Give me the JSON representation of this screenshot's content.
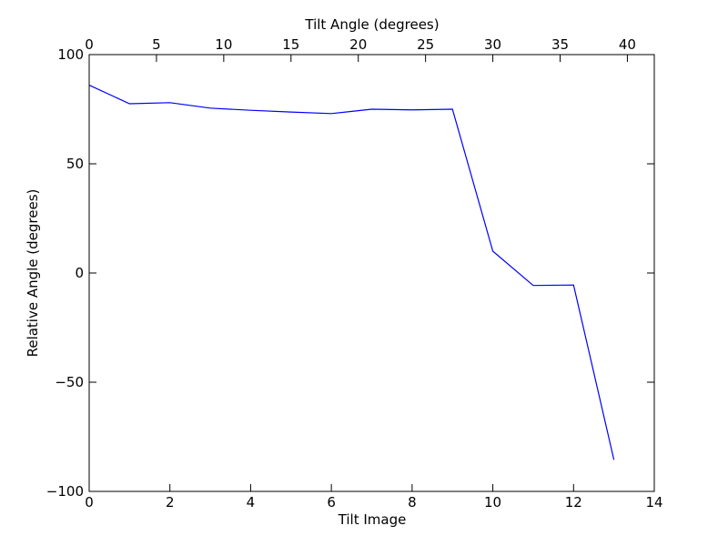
{
  "chart_data": {
    "type": "line",
    "xlabel": "Tilt Image",
    "x2label": "Tilt Angle (degrees)",
    "ylabel": "Relative Angle (degrees)",
    "xlim": [
      0,
      14
    ],
    "x2lim": [
      0,
      42
    ],
    "ylim": [
      -100,
      100
    ],
    "xticks": [
      0,
      2,
      4,
      6,
      8,
      10,
      12,
      14
    ],
    "x2ticks": [
      0,
      5,
      10,
      15,
      20,
      25,
      30,
      35,
      40
    ],
    "yticks": [
      -100,
      -50,
      0,
      50,
      100
    ],
    "ytick_labels": [
      "−100",
      "−50",
      "0",
      "50",
      "100"
    ],
    "grid": false,
    "series": [
      {
        "color": "#0000ff",
        "x": [
          0,
          1,
          2,
          3,
          4,
          5,
          6,
          7,
          8,
          9,
          10,
          11,
          12,
          13
        ],
        "y": [
          86,
          77.5,
          78,
          75.5,
          74.5,
          73.7,
          73,
          75,
          74.7,
          75,
          10,
          -5.7,
          -5.5,
          -85.5
        ]
      }
    ]
  }
}
